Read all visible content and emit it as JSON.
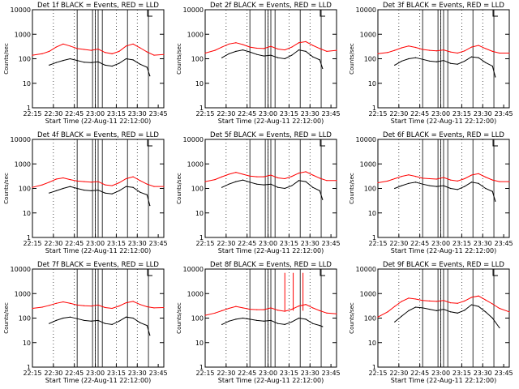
{
  "chart_data": [
    {
      "type": "line",
      "title": "Det 1f BLACK = Events, RED = LLD",
      "ylabel": "Counts/sec",
      "xlabel": "Start Time (22-Aug-11 22:12:00)",
      "x_ticks": [
        "22:15",
        "22:30",
        "22:45",
        "23:00",
        "23:15",
        "23:30",
        "23:45"
      ],
      "y_ticks": [
        "1",
        "10",
        "100",
        "1000",
        "10000"
      ],
      "y_scale": "log",
      "ylim": [
        1,
        10000
      ],
      "xlim_minutes": [
        3,
        97
      ],
      "vertical_lines_minutes": [
        35,
        46,
        48,
        50,
        53,
        71,
        86
      ],
      "series": [
        {
          "name": "Events",
          "color": "#000000",
          "x": [
            15,
            20,
            25,
            30,
            35,
            40,
            45,
            50,
            55,
            60,
            65,
            70,
            75,
            80,
            85,
            87
          ],
          "y": [
            55,
            70,
            85,
            100,
            85,
            72,
            70,
            75,
            55,
            50,
            65,
            100,
            90,
            60,
            45,
            20
          ]
        },
        {
          "name": "LLD",
          "color": "#ff0000",
          "x": [
            3,
            10,
            15,
            20,
            25,
            30,
            35,
            40,
            45,
            50,
            55,
            60,
            65,
            70,
            75,
            80,
            85,
            90,
            97
          ],
          "y": [
            140,
            160,
            200,
            300,
            400,
            330,
            260,
            240,
            220,
            250,
            180,
            160,
            200,
            330,
            400,
            280,
            190,
            140,
            150
          ]
        }
      ]
    },
    {
      "type": "line",
      "title": "Det 2f BLACK = Events, RED = LLD",
      "ylabel": "Counts/sec",
      "xlabel": "Start Time (22-Aug-11 22:12:00)",
      "x_ticks": [
        "22:15",
        "22:30",
        "22:45",
        "23:00",
        "23:15",
        "23:30",
        "23:45"
      ],
      "y_ticks": [
        "1",
        "10",
        "100",
        "1000",
        "10000"
      ],
      "y_scale": "log",
      "ylim": [
        1,
        10000
      ],
      "xlim_minutes": [
        3,
        97
      ],
      "vertical_lines_minutes": [
        35,
        46,
        48,
        50,
        53,
        71,
        86
      ],
      "series": [
        {
          "name": "Events",
          "color": "#000000",
          "x": [
            15,
            20,
            25,
            30,
            35,
            40,
            45,
            50,
            55,
            60,
            65,
            70,
            75,
            80,
            85,
            87
          ],
          "y": [
            110,
            160,
            200,
            230,
            190,
            150,
            130,
            140,
            110,
            100,
            140,
            230,
            200,
            120,
            90,
            40
          ]
        },
        {
          "name": "LLD",
          "color": "#ff0000",
          "x": [
            3,
            10,
            15,
            20,
            25,
            30,
            35,
            40,
            45,
            50,
            55,
            60,
            65,
            70,
            75,
            80,
            85,
            90,
            97
          ],
          "y": [
            170,
            220,
            300,
            400,
            450,
            380,
            300,
            270,
            260,
            320,
            250,
            230,
            300,
            450,
            500,
            350,
            260,
            200,
            220
          ]
        }
      ]
    },
    {
      "type": "line",
      "title": "Det 3f BLACK = Events, RED = LLD",
      "ylabel": "Counts/sec",
      "xlabel": "Start Time (22-Aug-11 22:12:00)",
      "x_ticks": [
        "22:15",
        "22:30",
        "22:45",
        "23:00",
        "23:15",
        "23:30",
        "23:45"
      ],
      "y_ticks": [
        "1",
        "10",
        "100",
        "1000",
        "10000"
      ],
      "y_scale": "log",
      "ylim": [
        1,
        10000
      ],
      "xlim_minutes": [
        3,
        97
      ],
      "vertical_lines_minutes": [
        35,
        46,
        48,
        50,
        53,
        71,
        86
      ],
      "series": [
        {
          "name": "Events",
          "color": "#000000",
          "x": [
            15,
            20,
            25,
            30,
            35,
            40,
            45,
            50,
            55,
            60,
            65,
            70,
            75,
            80,
            85,
            87
          ],
          "y": [
            55,
            80,
            100,
            110,
            95,
            80,
            75,
            85,
            65,
            60,
            80,
            120,
            110,
            70,
            50,
            18
          ]
        },
        {
          "name": "LLD",
          "color": "#ff0000",
          "x": [
            3,
            10,
            15,
            20,
            25,
            30,
            35,
            40,
            45,
            50,
            55,
            60,
            65,
            70,
            75,
            80,
            85,
            90,
            97
          ],
          "y": [
            160,
            180,
            220,
            280,
            330,
            290,
            240,
            220,
            210,
            230,
            190,
            170,
            210,
            300,
            350,
            260,
            200,
            170,
            170
          ]
        }
      ]
    },
    {
      "type": "line",
      "title": "Det 4f BLACK = Events, RED = LLD",
      "ylabel": "Counts/sec",
      "xlabel": "Start Time (22-Aug-11 22:12:00)",
      "x_ticks": [
        "22:15",
        "22:30",
        "22:45",
        "23:00",
        "23:15",
        "23:30",
        "23:45"
      ],
      "y_ticks": [
        "1",
        "10",
        "100",
        "1000",
        "10000"
      ],
      "y_scale": "log",
      "ylim": [
        1,
        10000
      ],
      "xlim_minutes": [
        3,
        97
      ],
      "vertical_lines_minutes": [
        35,
        46,
        48,
        50,
        53,
        71,
        86
      ],
      "series": [
        {
          "name": "Events",
          "color": "#000000",
          "x": [
            15,
            20,
            25,
            30,
            35,
            40,
            45,
            50,
            55,
            60,
            65,
            70,
            75,
            80,
            85,
            87
          ],
          "y": [
            65,
            80,
            100,
            120,
            100,
            85,
            80,
            85,
            65,
            60,
            80,
            120,
            110,
            70,
            55,
            20
          ]
        },
        {
          "name": "LLD",
          "color": "#ff0000",
          "x": [
            3,
            10,
            15,
            20,
            25,
            30,
            35,
            40,
            45,
            50,
            55,
            60,
            65,
            70,
            75,
            80,
            85,
            90,
            97
          ],
          "y": [
            110,
            140,
            180,
            240,
            270,
            230,
            200,
            190,
            180,
            190,
            140,
            130,
            170,
            250,
            300,
            210,
            150,
            120,
            120
          ]
        }
      ]
    },
    {
      "type": "line",
      "title": "Det 5f BLACK = Events, RED = LLD",
      "ylabel": "Counts/sec",
      "xlabel": "Start Time (22-Aug-11 22:12:00)",
      "x_ticks": [
        "22:15",
        "22:30",
        "22:45",
        "23:00",
        "23:15",
        "23:30",
        "23:45"
      ],
      "y_ticks": [
        "1",
        "10",
        "100",
        "1000",
        "10000"
      ],
      "y_scale": "log",
      "ylim": [
        1,
        10000
      ],
      "xlim_minutes": [
        3,
        97
      ],
      "vertical_lines_minutes": [
        35,
        46,
        48,
        50,
        53,
        71,
        86
      ],
      "series": [
        {
          "name": "Events",
          "color": "#000000",
          "x": [
            15,
            20,
            25,
            30,
            35,
            40,
            45,
            50,
            55,
            60,
            65,
            70,
            75,
            80,
            85,
            87
          ],
          "y": [
            110,
            150,
            190,
            220,
            180,
            150,
            140,
            150,
            110,
            100,
            130,
            210,
            190,
            110,
            80,
            35
          ]
        },
        {
          "name": "LLD",
          "color": "#ff0000",
          "x": [
            3,
            10,
            15,
            20,
            25,
            30,
            35,
            40,
            45,
            50,
            55,
            60,
            65,
            70,
            75,
            80,
            85,
            90,
            97
          ],
          "y": [
            190,
            230,
            300,
            380,
            450,
            380,
            320,
            300,
            300,
            350,
            270,
            250,
            310,
            420,
            480,
            350,
            260,
            210,
            210
          ]
        }
      ]
    },
    {
      "type": "line",
      "title": "Det 6f BLACK = Events, RED = LLD",
      "ylabel": "Counts/sec",
      "xlabel": "Start Time (22-Aug-11 22:12:00)",
      "x_ticks": [
        "22:15",
        "22:30",
        "22:45",
        "23:00",
        "23:15",
        "23:30",
        "23:45"
      ],
      "y_ticks": [
        "1",
        "10",
        "100",
        "1000",
        "10000"
      ],
      "y_scale": "log",
      "ylim": [
        1,
        10000
      ],
      "xlim_minutes": [
        3,
        97
      ],
      "vertical_lines_minutes": [
        35,
        46,
        48,
        50,
        53,
        71,
        86
      ],
      "series": [
        {
          "name": "Events",
          "color": "#000000",
          "x": [
            15,
            20,
            25,
            30,
            35,
            40,
            45,
            50,
            55,
            60,
            65,
            70,
            75,
            80,
            85,
            87
          ],
          "y": [
            100,
            130,
            160,
            180,
            150,
            130,
            120,
            130,
            100,
            90,
            120,
            180,
            160,
            100,
            75,
            30
          ]
        },
        {
          "name": "LLD",
          "color": "#ff0000",
          "x": [
            3,
            10,
            15,
            20,
            25,
            30,
            35,
            40,
            45,
            50,
            55,
            60,
            65,
            70,
            75,
            80,
            85,
            90,
            97
          ],
          "y": [
            170,
            200,
            250,
            310,
            360,
            310,
            260,
            250,
            240,
            280,
            220,
            200,
            250,
            350,
            400,
            290,
            220,
            190,
            190
          ]
        }
      ]
    },
    {
      "type": "line",
      "title": "Det 7f BLACK = Events, RED = LLD",
      "ylabel": "Counts/sec",
      "xlabel": "Start Time (22-Aug-11 22:12:00)",
      "x_ticks": [
        "22:15",
        "22:30",
        "22:45",
        "23:00",
        "23:15",
        "23:30",
        "23:45"
      ],
      "y_ticks": [
        "1",
        "10",
        "100",
        "1000",
        "10000"
      ],
      "y_scale": "log",
      "ylim": [
        1,
        10000
      ],
      "xlim_minutes": [
        3,
        97
      ],
      "vertical_lines_minutes": [
        35,
        46,
        48,
        50,
        53,
        71,
        86
      ],
      "series": [
        {
          "name": "Events",
          "color": "#000000",
          "x": [
            15,
            20,
            25,
            30,
            35,
            40,
            45,
            50,
            55,
            60,
            65,
            70,
            75,
            80,
            85,
            87
          ],
          "y": [
            60,
            80,
            100,
            110,
            95,
            80,
            75,
            80,
            60,
            55,
            75,
            110,
            100,
            65,
            50,
            20
          ]
        },
        {
          "name": "LLD",
          "color": "#ff0000",
          "x": [
            3,
            10,
            15,
            20,
            25,
            30,
            35,
            40,
            45,
            50,
            55,
            60,
            65,
            70,
            75,
            80,
            85,
            90,
            97
          ],
          "y": [
            250,
            280,
            330,
            400,
            460,
            400,
            340,
            320,
            310,
            340,
            270,
            250,
            310,
            420,
            480,
            360,
            290,
            260,
            270
          ]
        }
      ]
    },
    {
      "type": "line",
      "title": "Det 8f BLACK = Events, RED = LLD",
      "ylabel": "Counts/sec",
      "xlabel": "Start Time (22-Aug-11 22:12:00)",
      "x_ticks": [
        "22:15",
        "22:30",
        "22:45",
        "23:00",
        "23:15",
        "23:30",
        "23:45"
      ],
      "y_ticks": [
        "1",
        "10",
        "100",
        "1000",
        "10000"
      ],
      "y_scale": "log",
      "ylim": [
        1,
        10000
      ],
      "xlim_minutes": [
        3,
        97
      ],
      "vertical_lines_minutes": [
        35,
        46,
        48,
        50,
        53,
        71,
        86
      ],
      "series": [
        {
          "name": "Events",
          "color": "#000000",
          "x": [
            15,
            20,
            25,
            30,
            35,
            40,
            45,
            50,
            55,
            60,
            65,
            70,
            75,
            80,
            85,
            87
          ],
          "y": [
            55,
            75,
            90,
            100,
            90,
            80,
            75,
            80,
            60,
            55,
            70,
            100,
            90,
            60,
            50,
            45
          ]
        },
        {
          "name": "LLD",
          "color": "#ff0000",
          "x": [
            3,
            10,
            15,
            20,
            25,
            30,
            35,
            40,
            45,
            50,
            55,
            60,
            65,
            70,
            75,
            80,
            85,
            90,
            97
          ],
          "y": [
            130,
            160,
            200,
            250,
            300,
            260,
            230,
            220,
            220,
            260,
            210,
            190,
            230,
            310,
            360,
            260,
            200,
            160,
            150
          ]
        },
        {
          "name": "LLD spikes",
          "color": "#ff0000",
          "x": [
            60,
            66,
            73
          ],
          "y": [
            7000,
            7000,
            7000
          ]
        }
      ]
    },
    {
      "type": "line",
      "title": "Det 9f BLACK = Events, RED = LLD",
      "ylabel": "Counts/sec",
      "xlabel": "Start Time (22-Aug-11 22:12:00)",
      "x_ticks": [
        "22:15",
        "22:30",
        "22:45",
        "23:00",
        "23:15",
        "23:30",
        "23:45"
      ],
      "y_ticks": [
        "1",
        "10",
        "100",
        "1000",
        "10000"
      ],
      "y_scale": "log",
      "ylim": [
        1,
        10000
      ],
      "xlim_minutes": [
        3,
        97
      ],
      "vertical_lines_minutes": [
        35,
        46,
        48,
        50,
        53,
        71,
        86
      ],
      "series": [
        {
          "name": "Events",
          "color": "#000000",
          "x": [
            15,
            20,
            25,
            30,
            35,
            40,
            45,
            50,
            55,
            60,
            65,
            70,
            75,
            80,
            85,
            90
          ],
          "y": [
            70,
            120,
            200,
            280,
            260,
            230,
            200,
            230,
            180,
            160,
            210,
            350,
            300,
            180,
            100,
            40
          ]
        },
        {
          "name": "LLD",
          "color": "#ff0000",
          "x": [
            3,
            10,
            15,
            20,
            25,
            30,
            35,
            40,
            45,
            50,
            55,
            60,
            65,
            70,
            75,
            80,
            85,
            90,
            97
          ],
          "y": [
            110,
            180,
            300,
            480,
            650,
            600,
            520,
            500,
            480,
            520,
            420,
            400,
            500,
            700,
            800,
            550,
            380,
            250,
            180
          ]
        }
      ]
    }
  ]
}
